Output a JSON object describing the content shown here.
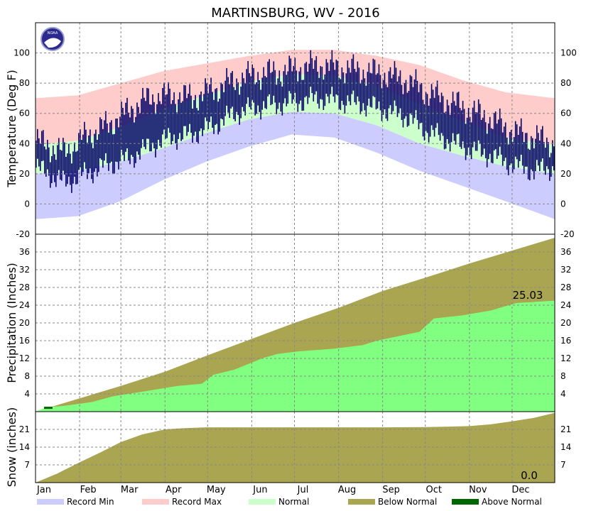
{
  "title": "MARTINSBURG, WV - 2016",
  "colors": {
    "record_min": "#ccccff",
    "record_max": "#ffcccc",
    "normal": "#ccffcc",
    "observed": "#000066",
    "precip_observed": "#80ff80",
    "below_normal": "#aaa550",
    "above_normal": "#006600"
  },
  "logo": {
    "text": "NOAA"
  },
  "chart_data": [
    {
      "type": "bar",
      "panel": "temperature",
      "ylabel": "Temperature (Deg F)",
      "ylim": [
        -20,
        120
      ],
      "yticks": [
        -20,
        0,
        20,
        40,
        60,
        80,
        100
      ],
      "grid": true,
      "months": [
        "Jan",
        "Feb",
        "Mar",
        "Apr",
        "May",
        "Jun",
        "Jul",
        "Aug",
        "Sep",
        "Oct",
        "Nov",
        "Dec"
      ],
      "series_points": {
        "record_max": [
          [
            0,
            70
          ],
          [
            30,
            72
          ],
          [
            60,
            80
          ],
          [
            90,
            88
          ],
          [
            120,
            93
          ],
          [
            150,
            98
          ],
          [
            180,
            102
          ],
          [
            210,
            102
          ],
          [
            240,
            98
          ],
          [
            270,
            92
          ],
          [
            300,
            82
          ],
          [
            330,
            74
          ],
          [
            365,
            70
          ]
        ],
        "normal_high": [
          [
            0,
            39
          ],
          [
            30,
            42
          ],
          [
            60,
            51
          ],
          [
            90,
            63
          ],
          [
            120,
            72
          ],
          [
            150,
            81
          ],
          [
            180,
            86
          ],
          [
            210,
            85
          ],
          [
            240,
            78
          ],
          [
            270,
            66
          ],
          [
            300,
            55
          ],
          [
            330,
            44
          ],
          [
            365,
            39
          ]
        ],
        "normal_low": [
          [
            0,
            20
          ],
          [
            30,
            22
          ],
          [
            60,
            28
          ],
          [
            90,
            37
          ],
          [
            120,
            47
          ],
          [
            150,
            56
          ],
          [
            180,
            61
          ],
          [
            210,
            60
          ],
          [
            240,
            52
          ],
          [
            270,
            40
          ],
          [
            300,
            32
          ],
          [
            330,
            25
          ],
          [
            365,
            20
          ]
        ],
        "record_min": [
          [
            0,
            -10
          ],
          [
            30,
            -8
          ],
          [
            60,
            2
          ],
          [
            90,
            16
          ],
          [
            120,
            28
          ],
          [
            150,
            38
          ],
          [
            180,
            46
          ],
          [
            210,
            44
          ],
          [
            240,
            34
          ],
          [
            270,
            22
          ],
          [
            300,
            12
          ],
          [
            330,
            2
          ],
          [
            365,
            -10
          ]
        ],
        "observed_high": [
          [
            0,
            42
          ],
          [
            20,
            34
          ],
          [
            35,
            45
          ],
          [
            50,
            52
          ],
          [
            65,
            62
          ],
          [
            80,
            70
          ],
          [
            95,
            72
          ],
          [
            110,
            70
          ],
          [
            125,
            76
          ],
          [
            140,
            82
          ],
          [
            155,
            86
          ],
          [
            170,
            87
          ],
          [
            185,
            90
          ],
          [
            200,
            92
          ],
          [
            215,
            90
          ],
          [
            230,
            88
          ],
          [
            245,
            86
          ],
          [
            260,
            82
          ],
          [
            275,
            74
          ],
          [
            290,
            68
          ],
          [
            305,
            62
          ],
          [
            320,
            56
          ],
          [
            335,
            48
          ],
          [
            350,
            44
          ],
          [
            365,
            40
          ]
        ],
        "observed_low": [
          [
            0,
            24
          ],
          [
            20,
            14
          ],
          [
            35,
            20
          ],
          [
            50,
            26
          ],
          [
            65,
            30
          ],
          [
            80,
            38
          ],
          [
            95,
            44
          ],
          [
            110,
            46
          ],
          [
            125,
            52
          ],
          [
            140,
            60
          ],
          [
            155,
            64
          ],
          [
            170,
            66
          ],
          [
            185,
            68
          ],
          [
            200,
            70
          ],
          [
            215,
            68
          ],
          [
            230,
            66
          ],
          [
            245,
            62
          ],
          [
            260,
            58
          ],
          [
            275,
            48
          ],
          [
            290,
            42
          ],
          [
            305,
            36
          ],
          [
            320,
            32
          ],
          [
            335,
            26
          ],
          [
            350,
            22
          ],
          [
            365,
            24
          ]
        ]
      }
    },
    {
      "type": "area",
      "panel": "precipitation",
      "ylabel": "Precipitation (Inches)",
      "ylim": [
        0,
        40
      ],
      "yticks": [
        4,
        8,
        12,
        16,
        20,
        24,
        28,
        32,
        36
      ],
      "grid": true,
      "annotation": "25.03",
      "normal_cumulative": [
        [
          0,
          0
        ],
        [
          31,
          3.0
        ],
        [
          60,
          5.8
        ],
        [
          91,
          9.0
        ],
        [
          121,
          12.7
        ],
        [
          152,
          16.4
        ],
        [
          182,
          20.0
        ],
        [
          213,
          23.4
        ],
        [
          244,
          27.2
        ],
        [
          274,
          30.2
        ],
        [
          305,
          33.4
        ],
        [
          335,
          36.3
        ],
        [
          365,
          39.2
        ]
      ],
      "observed_cumulative": [
        [
          0,
          0
        ],
        [
          8,
          1.0
        ],
        [
          20,
          1.3
        ],
        [
          40,
          2.2
        ],
        [
          55,
          3.5
        ],
        [
          75,
          4.5
        ],
        [
          100,
          5.8
        ],
        [
          117,
          6.3
        ],
        [
          125,
          8.3
        ],
        [
          140,
          9.5
        ],
        [
          150,
          10.8
        ],
        [
          160,
          12.1
        ],
        [
          170,
          13.0
        ],
        [
          185,
          13.6
        ],
        [
          210,
          14.2
        ],
        [
          230,
          15.0
        ],
        [
          240,
          16.0
        ],
        [
          270,
          18.0
        ],
        [
          280,
          21.0
        ],
        [
          300,
          21.7
        ],
        [
          320,
          22.8
        ],
        [
          338,
          24.5
        ],
        [
          365,
          25.03
        ]
      ]
    },
    {
      "type": "area",
      "panel": "snow",
      "ylabel": "Snow (inches)",
      "ylim": [
        0,
        28
      ],
      "yticks": [
        7,
        14,
        21
      ],
      "grid": true,
      "annotation": "0.0",
      "normal_cumulative": [
        [
          0,
          0
        ],
        [
          15,
          3.5
        ],
        [
          31,
          8.0
        ],
        [
          46,
          12.0
        ],
        [
          60,
          16.0
        ],
        [
          75,
          19.0
        ],
        [
          91,
          21.0
        ],
        [
          105,
          21.5
        ],
        [
          120,
          21.8
        ],
        [
          150,
          21.8
        ],
        [
          244,
          21.8
        ],
        [
          274,
          21.9
        ],
        [
          305,
          22.3
        ],
        [
          320,
          23.0
        ],
        [
          335,
          24.2
        ],
        [
          350,
          25.5
        ],
        [
          365,
          27.5
        ]
      ],
      "observed_cumulative": [
        [
          0,
          0
        ],
        [
          365,
          0
        ]
      ]
    }
  ],
  "legend": [
    {
      "label": "Record Min",
      "color": "#ccccff"
    },
    {
      "label": "Record Max",
      "color": "#ffcccc"
    },
    {
      "label": "Normal",
      "color": "#ccffcc"
    },
    {
      "label": "Below Normal",
      "color": "#aaa550"
    },
    {
      "label": "Above Normal",
      "color": "#006600"
    }
  ]
}
